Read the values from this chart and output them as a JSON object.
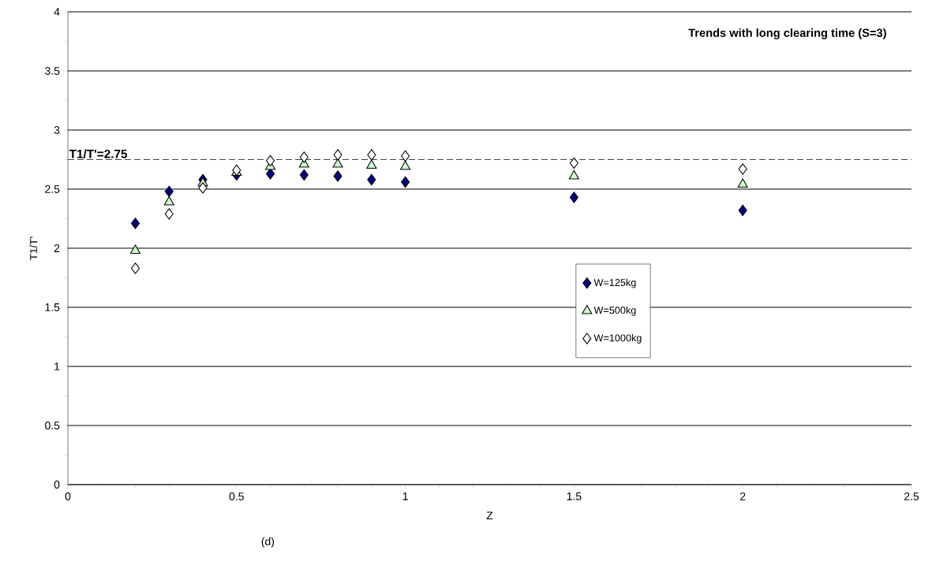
{
  "chart_data": {
    "type": "scatter",
    "title": "Trends with long clearing time (S=3)",
    "xlabel": "Z",
    "ylabel": "T1/T'",
    "x": [
      0.2,
      0.3,
      0.4,
      0.5,
      0.6,
      0.7,
      0.8,
      0.9,
      1.0,
      1.5,
      2.0
    ],
    "series": [
      {
        "name": "W=125kg",
        "color": "#000080",
        "marker": "diamond",
        "values": [
          2.21,
          2.48,
          2.58,
          2.62,
          2.63,
          2.62,
          2.61,
          2.58,
          2.56,
          2.43,
          2.32
        ]
      },
      {
        "name": "W=500kg",
        "color": "#ccffcc",
        "marker": "triangle",
        "values": [
          1.98,
          2.39,
          2.55,
          2.64,
          2.69,
          2.71,
          2.71,
          2.7,
          2.69,
          2.61,
          2.54
        ]
      },
      {
        "name": "W=1000kg",
        "color": "#ffffff",
        "marker": "diamond",
        "values": [
          1.83,
          2.29,
          2.51,
          2.66,
          2.74,
          2.77,
          2.79,
          2.79,
          2.78,
          2.72,
          2.67
        ]
      }
    ],
    "xlim": [
      0,
      2.5
    ],
    "ylim": [
      0,
      4
    ],
    "xticks": [
      0,
      0.5,
      1,
      1.5,
      2,
      2.5
    ],
    "yticks": [
      0,
      0.5,
      1,
      1.5,
      2,
      2.5,
      3,
      3.5,
      4
    ],
    "grid": "y",
    "legend": "right",
    "ref_lines": [
      {
        "axis": "y",
        "value": 2.75,
        "label": "T1/T'=2.75",
        "line_style": "dashed"
      }
    ],
    "annotations": [
      "(d)"
    ]
  }
}
